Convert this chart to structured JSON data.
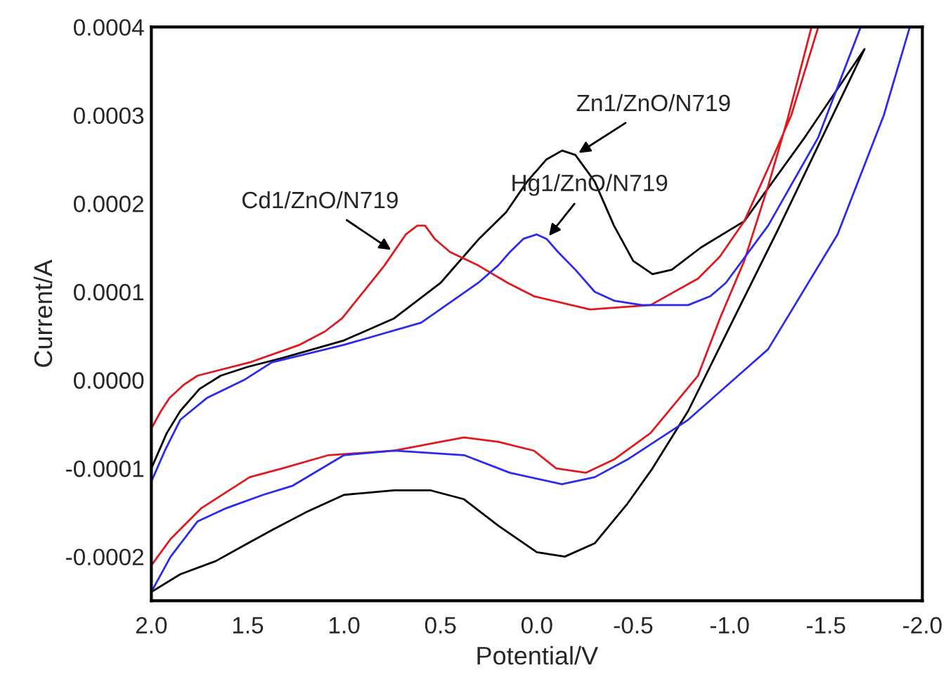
{
  "chart_data": {
    "type": "line",
    "xlabel": "Potential/V",
    "ylabel": "Current/A",
    "xlim": [
      2.0,
      -2.0
    ],
    "ylim": [
      -0.00025,
      0.0004
    ],
    "xticks": [
      {
        "value": 2.0,
        "label": "2.0"
      },
      {
        "value": 1.5,
        "label": "1.5"
      },
      {
        "value": 1.0,
        "label": "1.0"
      },
      {
        "value": 0.5,
        "label": "0.5"
      },
      {
        "value": 0.0,
        "label": "0.0"
      },
      {
        "value": -0.5,
        "label": "-0.5"
      },
      {
        "value": -1.0,
        "label": "-1.0"
      },
      {
        "value": -1.5,
        "label": "-1.5"
      },
      {
        "value": -2.0,
        "label": "-2.0"
      }
    ],
    "yticks": [
      {
        "value": -0.0002,
        "label": "-0.0002"
      },
      {
        "value": -0.0001,
        "label": "-0.0001"
      },
      {
        "value": 0.0,
        "label": "0.0000"
      },
      {
        "value": 0.0001,
        "label": "0.0001"
      },
      {
        "value": 0.0002,
        "label": "0.0002"
      },
      {
        "value": 0.0003,
        "label": "0.0003"
      },
      {
        "value": 0.0004,
        "label": "0.0004"
      }
    ],
    "grid": false,
    "legend": false,
    "marker": "none",
    "line_style": "solid",
    "series": [
      {
        "color": "#000000",
        "x": [
          2.0,
          1.92,
          1.85,
          1.75,
          1.64,
          1.5,
          1.32,
          1.0,
          0.74,
          0.5,
          0.3,
          0.16,
          0.05,
          -0.05,
          -0.131,
          -0.2,
          -0.3,
          -0.4,
          -0.5,
          -0.6,
          -0.7,
          -0.85,
          -1.076,
          -1.39,
          -1.7,
          -1.25,
          -1.0,
          -0.785,
          -0.6,
          -0.47,
          -0.3,
          -0.145,
          0.0,
          0.2,
          0.378,
          0.55,
          0.742,
          1.0,
          1.2,
          1.375,
          1.5,
          1.665,
          1.85,
          2.0
        ],
        "values": [
          -0.0001,
          -6e-05,
          -3.5e-05,
          -1e-05,
          5e-06,
          1.5e-05,
          2.5e-05,
          4.5e-05,
          7e-05,
          0.00011,
          0.00016,
          0.00019,
          0.000225,
          0.00025,
          0.00026,
          0.000255,
          0.000225,
          0.000175,
          0.000135,
          0.00012,
          0.000125,
          0.00015,
          0.00018,
          0.000275,
          0.000375,
          0.00017,
          6e-05,
          -3.5e-05,
          -0.0001,
          -0.00014,
          -0.000185,
          -0.0002,
          -0.000195,
          -0.000165,
          -0.000135,
          -0.000125,
          -0.000125,
          -0.00013,
          -0.00015,
          -0.00017,
          -0.000185,
          -0.000205,
          -0.00022,
          -0.00024
        ]
      },
      {
        "color": "#e0191e",
        "x": [
          2.0,
          1.95,
          1.905,
          1.83,
          1.76,
          1.49,
          1.23,
          1.1,
          1.01,
          0.9,
          0.79,
          0.68,
          0.62,
          0.58,
          0.53,
          0.45,
          0.305,
          0.15,
          0.015,
          -0.276,
          -0.59,
          -0.836,
          -0.95,
          -1.076,
          -1.2,
          -1.32,
          -1.46,
          null,
          -1.425,
          -1.3,
          -1.2,
          -1.076,
          -0.95,
          -0.836,
          -0.59,
          -0.4,
          -0.255,
          -0.1,
          0.015,
          0.2,
          0.378,
          0.5,
          0.74,
          1.08,
          1.32,
          1.49,
          1.74,
          1.9,
          2.0
        ],
        "values": [
          -5.5e-05,
          -3.5e-05,
          -2e-05,
          -5e-06,
          5e-06,
          2e-05,
          4e-05,
          5.5e-05,
          7e-05,
          0.0001,
          0.00013,
          0.000165,
          0.000175,
          0.000175,
          0.00016,
          0.000145,
          0.00013,
          0.00011,
          9.5e-05,
          8e-05,
          8.5e-05,
          0.000115,
          0.00014,
          0.00018,
          0.00024,
          0.0003,
          0.0004,
          null,
          0.0004,
          0.000295,
          0.00022,
          0.000135,
          7e-05,
          5e-06,
          -6e-05,
          -9e-05,
          -0.000105,
          -0.0001,
          -8e-05,
          -7e-05,
          -6.5e-05,
          -7e-05,
          -8e-05,
          -8.5e-05,
          -0.0001,
          -0.00011,
          -0.000145,
          -0.00018,
          -0.00021
        ]
      },
      {
        "color": "#2b2bf0",
        "x": [
          2.0,
          1.93,
          1.85,
          1.71,
          1.52,
          1.375,
          1.0,
          0.6,
          0.305,
          0.2,
          0.14,
          0.07,
          0.0,
          -0.05,
          -0.11,
          -0.2,
          -0.3,
          -0.4,
          -0.545,
          -0.785,
          -0.9,
          -0.98,
          -1.2,
          -1.46,
          -1.68,
          null,
          -1.935,
          -1.8,
          -1.56,
          -1.2,
          -0.785,
          -0.47,
          -0.3,
          -0.13,
          0.14,
          0.378,
          0.74,
          1.0,
          1.27,
          1.42,
          1.61,
          1.76,
          1.9,
          2.0
        ],
        "values": [
          -0.000115,
          -8e-05,
          -4.5e-05,
          -2e-05,
          0.0,
          2e-05,
          4e-05,
          6.5e-05,
          0.00011,
          0.00013,
          0.000145,
          0.00016,
          0.000165,
          0.00016,
          0.000145,
          0.000125,
          0.0001,
          9e-05,
          8.5e-05,
          8.5e-05,
          9.5e-05,
          0.00011,
          0.000175,
          0.000275,
          0.0004,
          null,
          0.0004,
          0.0003,
          0.000165,
          3.5e-05,
          -4.5e-05,
          -9e-05,
          -0.00011,
          -0.000118,
          -0.000105,
          -8.5e-05,
          -8e-05,
          -8.5e-05,
          -0.00012,
          -0.00013,
          -0.000145,
          -0.00016,
          -0.0002,
          -0.00024
        ]
      }
    ],
    "annotations": [
      {
        "text": "Zn1/ZnO/N719",
        "x": -0.2,
        "y": 0.000255
      },
      {
        "text": "Cd1/ZnO/N719",
        "x": 0.74,
        "y": 0.000145
      },
      {
        "text": "Hg1/ZnO/N719",
        "x": -0.05,
        "y": 0.00016
      }
    ]
  }
}
